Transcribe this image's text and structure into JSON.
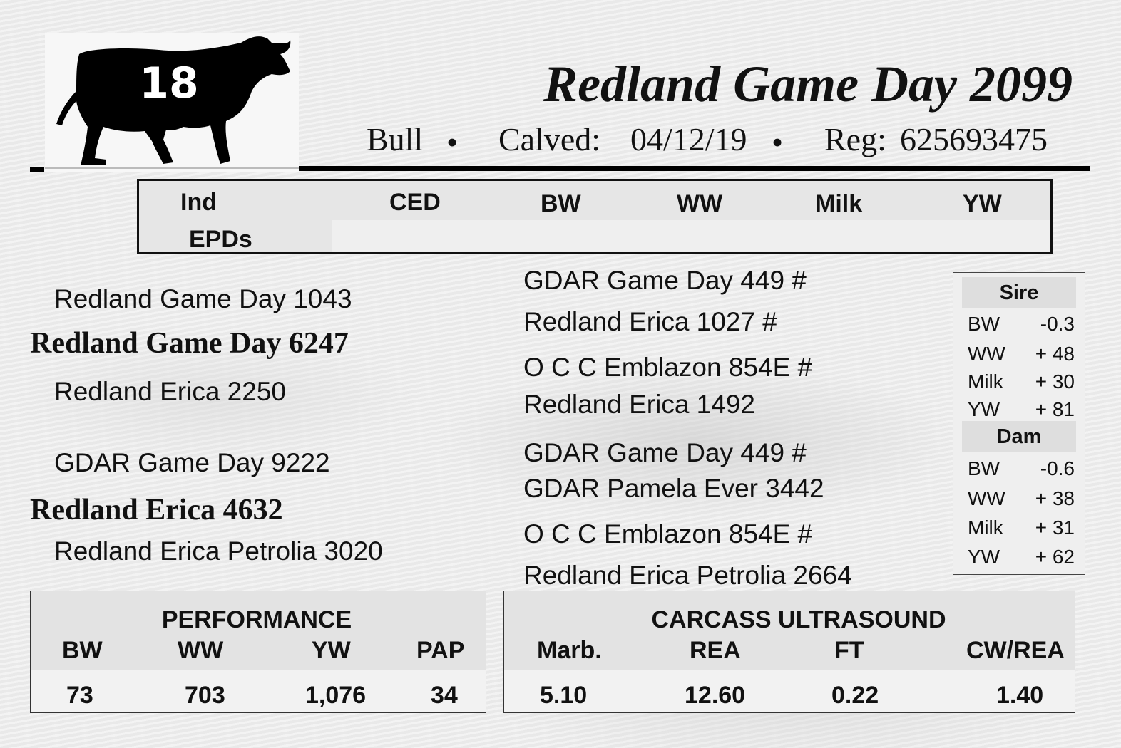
{
  "header": {
    "lot_number": "18",
    "animal_name": "Redland Game Day 2099",
    "sex": "Bull",
    "calved_label": "Calved:",
    "calved_date": "04/12/19",
    "reg_label": "Reg:",
    "reg_number": "625693475",
    "separator": "•"
  },
  "epd_header": {
    "ind_label": "Ind",
    "epds_label": "EPDs",
    "columns": [
      "CED",
      "BW",
      "WW",
      "Milk",
      "YW"
    ]
  },
  "pedigree": {
    "sire": "Redland Game Day 6247",
    "sire_sire": "Redland Game Day 1043",
    "sire_dam": "Redland Erica 2250",
    "dam": "Redland Erica 4632",
    "dam_sire": "GDAR Game Day 9222",
    "dam_dam": "Redland Erica Petrolia 3020",
    "third_generation": [
      "GDAR Game Day 449 #",
      "Redland Erica 1027 #",
      "O C C Emblazon 854E #",
      "Redland Erica 1492",
      "GDAR Game Day 449 #",
      "GDAR Pamela Ever 3442",
      "O C C Emblazon 854E #",
      "Redland Erica Petrolia 2664"
    ]
  },
  "parent_epds": {
    "sire": {
      "title": "Sire",
      "rows": [
        {
          "label": "BW",
          "value": "-0.3"
        },
        {
          "label": "WW",
          "value": "+ 48"
        },
        {
          "label": "Milk",
          "value": "+ 30"
        },
        {
          "label": "YW",
          "value": "+ 81"
        }
      ]
    },
    "dam": {
      "title": "Dam",
      "rows": [
        {
          "label": "BW",
          "value": "-0.6"
        },
        {
          "label": "WW",
          "value": "+ 38"
        },
        {
          "label": "Milk",
          "value": "+ 31"
        },
        {
          "label": "YW",
          "value": "+ 62"
        }
      ]
    }
  },
  "performance": {
    "title": "PERFORMANCE",
    "headers": [
      "BW",
      "WW",
      "YW",
      "PAP"
    ],
    "values": [
      "73",
      "703",
      "1,076",
      "34"
    ]
  },
  "carcass": {
    "title": "CARCASS ULTRASOUND",
    "headers": [
      "Marb.",
      "REA",
      "FT",
      "CW/REA"
    ],
    "values": [
      "5.10",
      "12.60",
      "0.22",
      "1.40"
    ]
  }
}
